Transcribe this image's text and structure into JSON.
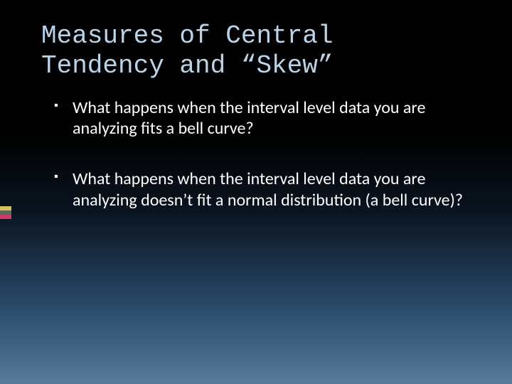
{
  "slide": {
    "title": "Measures of Central Tendency and “Skew”",
    "bullets": [
      "What happens when the interval level data you are analyzing fits a bell curve?",
      "What happens when the interval level data you are analyzing doesn’t fit a normal distribution (a bell curve)?"
    ]
  },
  "style": {
    "title_color": "#b8d4e8",
    "title_font": "Consolas, monospace",
    "title_fontsize": 36,
    "body_color": "#ffffff",
    "body_font": "Calibri, sans-serif",
    "body_fontsize": 24,
    "background_gradient": [
      "#000000",
      "#0a1420",
      "#2a4a6a",
      "#5a7a9a"
    ],
    "accent_tabs": [
      "#d4c158",
      "#5a6a5a",
      "#d13a6a"
    ]
  }
}
